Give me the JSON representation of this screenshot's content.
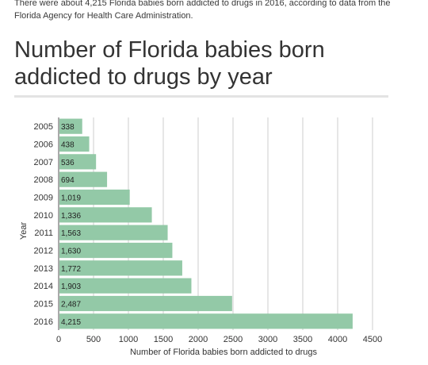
{
  "intro": "There were about 4,215 Florida babies born addicted to drugs in 2016, according to data from the Florida Agency for Health Care Administration.",
  "chart_data": {
    "type": "bar",
    "orientation": "horizontal",
    "title": "Number of Florida babies born addicted to drugs by year",
    "xlabel": "Number of Florida babies born addicted to drugs",
    "ylabel": "Year",
    "categories": [
      "2005",
      "2006",
      "2007",
      "2008",
      "2009",
      "2010",
      "2011",
      "2012",
      "2013",
      "2014",
      "2015",
      "2016"
    ],
    "values": [
      338,
      438,
      536,
      694,
      1019,
      1336,
      1563,
      1630,
      1772,
      1903,
      2487,
      4215
    ],
    "value_labels": [
      "338",
      "438",
      "536",
      "694",
      "1,019",
      "1,336",
      "1,563",
      "1,630",
      "1,772",
      "1,903",
      "2,487",
      "4,215"
    ],
    "xlim": [
      0,
      4500
    ],
    "xticks": [
      0,
      500,
      1000,
      1500,
      2000,
      2500,
      3000,
      3500,
      4000,
      4500
    ],
    "grid": true,
    "bar_color": "#93c9a7"
  }
}
